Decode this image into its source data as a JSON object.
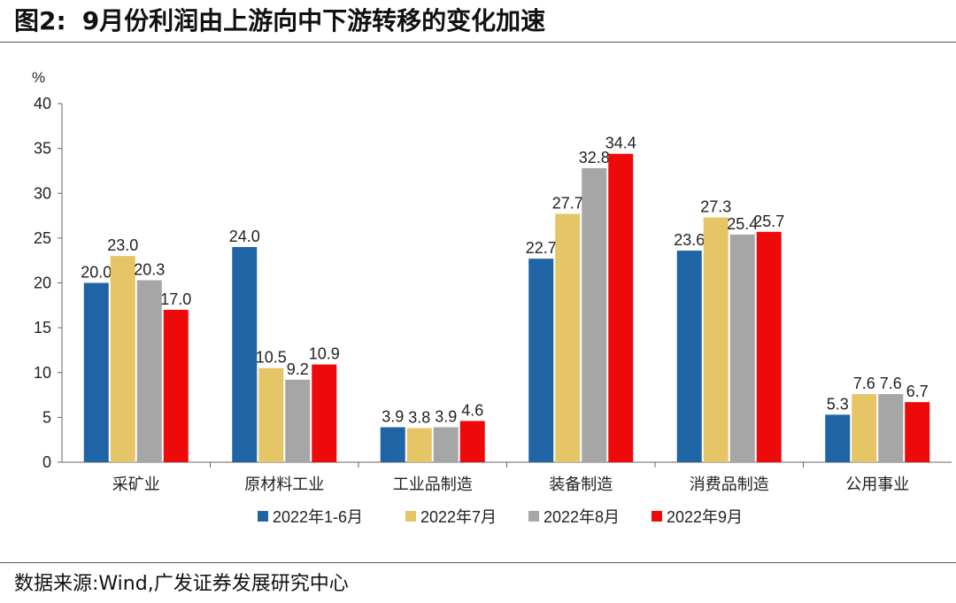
{
  "header": {
    "figure_tag": "图2:",
    "title_text": "9月份利润由上游向中下游转移的变化加速"
  },
  "footer": {
    "source": "数据来源:Wind,广发证券发展研究中心"
  },
  "chart_data": {
    "type": "bar",
    "title": "9月份利润由上游向中下游转移的变化加速",
    "ylabel": "%",
    "xlabel": "",
    "ylim": [
      0,
      40
    ],
    "yticks": [
      0,
      5,
      10,
      15,
      20,
      25,
      30,
      35,
      40
    ],
    "categories": [
      "采矿业",
      "原材料工业",
      "工业品制造",
      "装备制造",
      "消费品制造",
      "公用事业"
    ],
    "series": [
      {
        "name": "2022年1-6月",
        "color": "#1f64a4",
        "values": [
          20.0,
          24.0,
          3.9,
          22.7,
          23.6,
          5.3
        ]
      },
      {
        "name": "2022年7月",
        "color": "#e5c566",
        "values": [
          23.0,
          10.5,
          3.8,
          27.7,
          27.3,
          7.6
        ]
      },
      {
        "name": "2022年8月",
        "color": "#a6a6a6",
        "values": [
          20.3,
          9.2,
          3.9,
          32.8,
          25.4,
          7.6
        ]
      },
      {
        "name": "2022年9月",
        "color": "#ee0a0a",
        "values": [
          17.0,
          10.9,
          4.6,
          34.4,
          25.7,
          6.7
        ]
      }
    ],
    "legend_position": "bottom",
    "grid": false
  }
}
